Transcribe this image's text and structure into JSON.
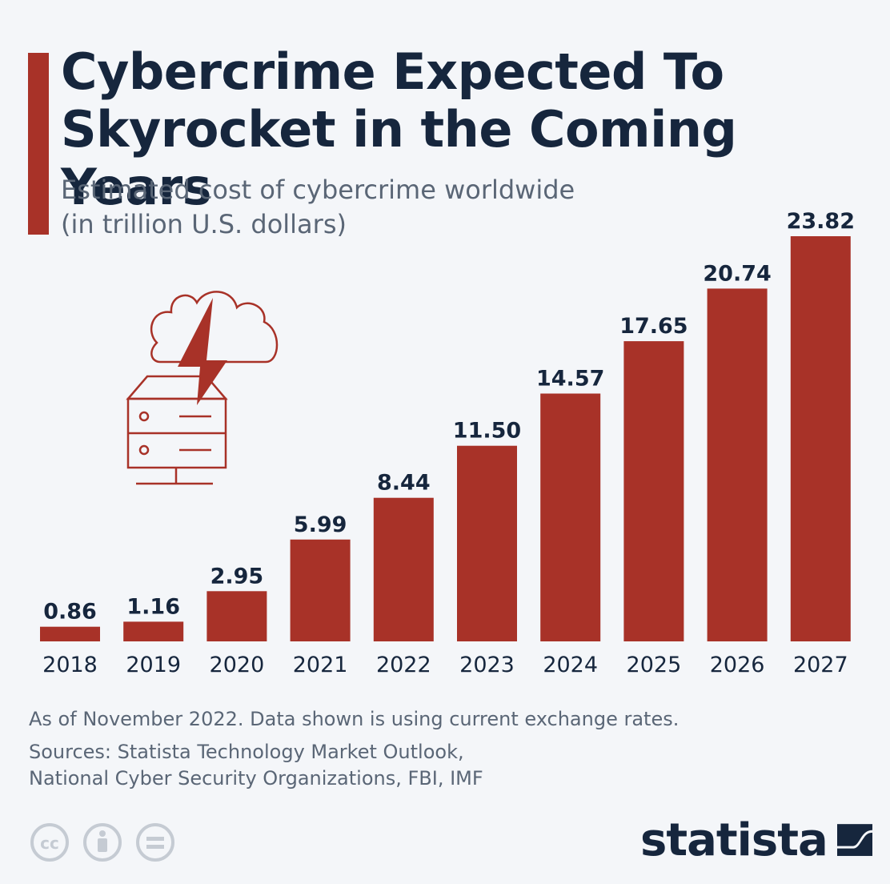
{
  "header": {
    "title_line1": "Cybercrime Expected To",
    "title_line2": "Skyrocket in the Coming Years",
    "subtitle_line1": "Estimated cost of cybercrime worldwide",
    "subtitle_line2": "(in trillion U.S. dollars)"
  },
  "chart_data": {
    "type": "bar",
    "title": "Cybercrime Expected To Skyrocket in the Coming Years",
    "subtitle": "Estimated cost of cybercrime worldwide (in trillion U.S. dollars)",
    "categories": [
      "2018",
      "2019",
      "2020",
      "2021",
      "2022",
      "2023",
      "2024",
      "2025",
      "2026",
      "2027"
    ],
    "values": [
      0.86,
      1.16,
      2.95,
      5.99,
      8.44,
      11.5,
      14.57,
      17.65,
      20.74,
      23.82
    ],
    "value_labels": [
      "0.86",
      "1.16",
      "2.95",
      "5.99",
      "8.44",
      "11.50",
      "14.57",
      "17.65",
      "20.74",
      "23.82"
    ],
    "xlabel": "",
    "ylabel": "",
    "ylim": [
      0,
      23.82
    ],
    "grid": false,
    "legend": "none",
    "bar_color": "#a83228"
  },
  "footer": {
    "note": "As of November 2022. Data shown is using current exchange rates.",
    "sources_line1": "Sources: Statista Technology Market Outlook,",
    "sources_line2": "National Cyber Security Organizations, FBI, IMF",
    "brand": "statista"
  },
  "colors": {
    "accent": "#a83228",
    "title": "#16263d",
    "muted": "#5a6676",
    "background": "#f4f6f9"
  },
  "icons": [
    "cloud-icon",
    "lightning-icon",
    "server-icon",
    "cc-icon",
    "attribution-icon",
    "no-derivatives-icon",
    "statista-logo-icon"
  ]
}
